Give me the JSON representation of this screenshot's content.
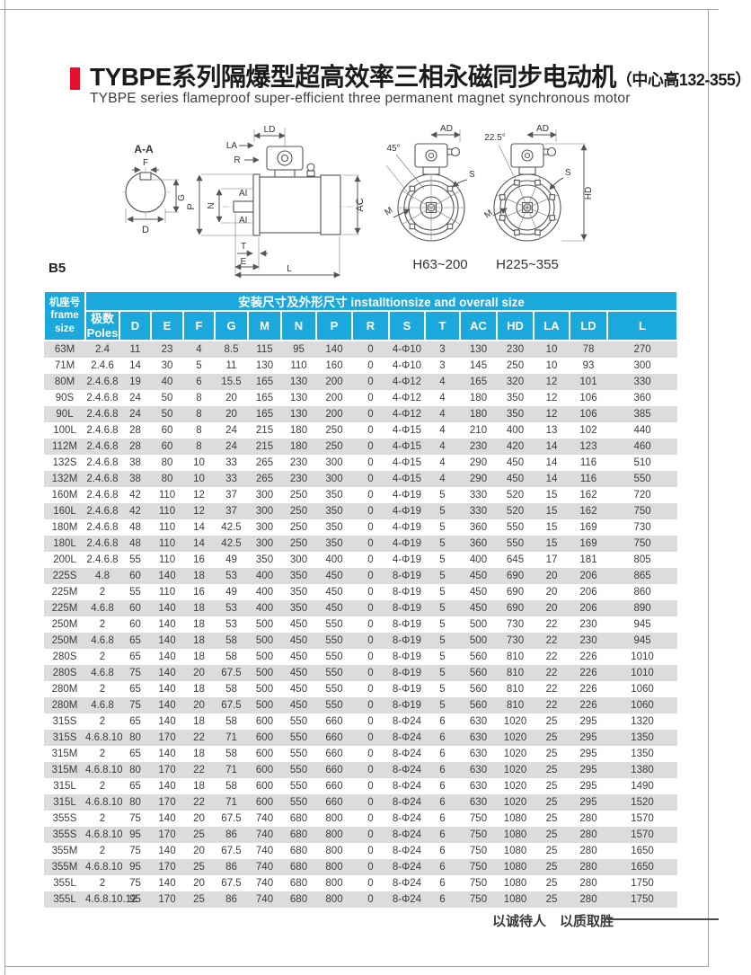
{
  "page": {
    "title_cn": "TYBPE系列隔爆型超高效率三相永磁同步电动机",
    "title_note": "（中心高132-355）",
    "subtitle_en": "TYBPE series flameproof super-efficient three permanent magnet synchronous motor",
    "mounting_label": "B5",
    "motto": "以诚待人　以质取胜"
  },
  "drawings": {
    "section_view": {
      "title": "A-A",
      "labels": {
        "f": "F",
        "g": "G",
        "d": "D"
      }
    },
    "side_view": {
      "labels": {
        "ld": "LD",
        "la": "LA",
        "r": "R",
        "p": "P",
        "n": "N",
        "ai_top": "AI",
        "ai_bottom": "AI",
        "ac": "AC",
        "t": "T",
        "e": "E",
        "l": "L"
      }
    },
    "front_view_small": {
      "caption": "H63~200",
      "angle": "45°",
      "labels": {
        "ad": "AD",
        "s": "S",
        "m": "M"
      }
    },
    "front_view_large": {
      "caption": "H225~355",
      "angle": "22.5°",
      "labels": {
        "ad": "AD",
        "s": "S",
        "m": "M",
        "hd": "HD"
      }
    }
  },
  "table": {
    "span_header": "安装尺寸及外形尺寸 installtionsize and overall size",
    "frame_header_cn": "机座号",
    "frame_header_en": "frame size",
    "poles_header_cn": "极数",
    "poles_header_en": "Poles",
    "dim_columns": [
      "D",
      "E",
      "F",
      "G",
      "M",
      "N",
      "P",
      "R",
      "S",
      "T",
      "AC",
      "HD",
      "LA",
      "LD",
      "L"
    ],
    "rows": [
      [
        "63M",
        "2.4",
        "11",
        "23",
        "4",
        "8.5",
        "115",
        "95",
        "140",
        "0",
        "4-Φ10",
        "3",
        "130",
        "230",
        "10",
        "78",
        "270"
      ],
      [
        "71M",
        "2.4.6",
        "14",
        "30",
        "5",
        "11",
        "130",
        "110",
        "160",
        "0",
        "4-Φ10",
        "3",
        "145",
        "250",
        "10",
        "93",
        "300"
      ],
      [
        "80M",
        "2.4.6.8",
        "19",
        "40",
        "6",
        "15.5",
        "165",
        "130",
        "200",
        "0",
        "4-Φ12",
        "4",
        "165",
        "320",
        "12",
        "101",
        "330"
      ],
      [
        "90S",
        "2.4.6.8",
        "24",
        "50",
        "8",
        "20",
        "165",
        "130",
        "200",
        "0",
        "4-Φ12",
        "4",
        "180",
        "350",
        "12",
        "106",
        "360"
      ],
      [
        "90L",
        "2.4.6.8",
        "24",
        "50",
        "8",
        "20",
        "165",
        "130",
        "200",
        "0",
        "4-Φ12",
        "4",
        "180",
        "350",
        "12",
        "106",
        "385"
      ],
      [
        "100L",
        "2.4.6.8",
        "28",
        "60",
        "8",
        "24",
        "215",
        "180",
        "250",
        "0",
        "4-Φ15",
        "4",
        "210",
        "400",
        "13",
        "102",
        "440"
      ],
      [
        "112M",
        "2.4.6.8",
        "28",
        "60",
        "8",
        "24",
        "215",
        "180",
        "250",
        "0",
        "4-Φ15",
        "4",
        "230",
        "420",
        "14",
        "123",
        "460"
      ],
      [
        "132S",
        "2.4.6.8",
        "38",
        "80",
        "10",
        "33",
        "265",
        "230",
        "300",
        "0",
        "4-Φ15",
        "4",
        "290",
        "450",
        "14",
        "116",
        "510"
      ],
      [
        "132M",
        "2.4.6.8",
        "38",
        "80",
        "10",
        "33",
        "265",
        "230",
        "300",
        "0",
        "4-Φ15",
        "4",
        "290",
        "450",
        "14",
        "116",
        "550"
      ],
      [
        "160M",
        "2.4.6.8",
        "42",
        "110",
        "12",
        "37",
        "300",
        "250",
        "350",
        "0",
        "4-Φ19",
        "5",
        "330",
        "520",
        "15",
        "162",
        "720"
      ],
      [
        "160L",
        "2.4.6.8",
        "42",
        "110",
        "12",
        "37",
        "300",
        "250",
        "350",
        "0",
        "4-Φ19",
        "5",
        "330",
        "520",
        "15",
        "162",
        "750"
      ],
      [
        "180M",
        "2.4.6.8",
        "48",
        "110",
        "14",
        "42.5",
        "300",
        "250",
        "350",
        "0",
        "4-Φ19",
        "5",
        "360",
        "550",
        "15",
        "169",
        "730"
      ],
      [
        "180L",
        "2.4.6.8",
        "48",
        "110",
        "14",
        "42.5",
        "300",
        "250",
        "350",
        "0",
        "4-Φ19",
        "5",
        "360",
        "550",
        "15",
        "169",
        "750"
      ],
      [
        "200L",
        "2.4.6.8",
        "55",
        "110",
        "16",
        "49",
        "350",
        "300",
        "400",
        "0",
        "4-Φ19",
        "5",
        "400",
        "645",
        "17",
        "181",
        "805"
      ],
      [
        "225S",
        "4.8",
        "60",
        "140",
        "18",
        "53",
        "400",
        "350",
        "450",
        "0",
        "8-Φ19",
        "5",
        "450",
        "690",
        "20",
        "206",
        "865"
      ],
      [
        "225M",
        "2",
        "55",
        "110",
        "16",
        "49",
        "400",
        "350",
        "450",
        "0",
        "8-Φ19",
        "5",
        "450",
        "690",
        "20",
        "206",
        "860"
      ],
      [
        "225M",
        "4.6.8",
        "60",
        "140",
        "18",
        "53",
        "400",
        "350",
        "450",
        "0",
        "8-Φ19",
        "5",
        "450",
        "690",
        "20",
        "206",
        "890"
      ],
      [
        "250M",
        "2",
        "60",
        "140",
        "18",
        "53",
        "500",
        "450",
        "550",
        "0",
        "8-Φ19",
        "5",
        "500",
        "730",
        "22",
        "230",
        "945"
      ],
      [
        "250M",
        "4.6.8",
        "65",
        "140",
        "18",
        "58",
        "500",
        "450",
        "550",
        "0",
        "8-Φ19",
        "5",
        "500",
        "730",
        "22",
        "230",
        "945"
      ],
      [
        "280S",
        "2",
        "65",
        "140",
        "18",
        "58",
        "500",
        "450",
        "550",
        "0",
        "8-Φ19",
        "5",
        "560",
        "810",
        "22",
        "226",
        "1010"
      ],
      [
        "280S",
        "4.6.8",
        "75",
        "140",
        "20",
        "67.5",
        "500",
        "450",
        "550",
        "0",
        "8-Φ19",
        "5",
        "560",
        "810",
        "22",
        "226",
        "1010"
      ],
      [
        "280M",
        "2",
        "65",
        "140",
        "18",
        "58",
        "500",
        "450",
        "550",
        "0",
        "8-Φ19",
        "5",
        "560",
        "810",
        "22",
        "226",
        "1060"
      ],
      [
        "280M",
        "4.6.8",
        "75",
        "140",
        "20",
        "67.5",
        "500",
        "450",
        "550",
        "0",
        "8-Φ19",
        "5",
        "560",
        "810",
        "22",
        "226",
        "1060"
      ],
      [
        "315S",
        "2",
        "65",
        "140",
        "18",
        "58",
        "600",
        "550",
        "660",
        "0",
        "8-Φ24",
        "6",
        "630",
        "1020",
        "25",
        "295",
        "1320"
      ],
      [
        "315S",
        "4.6.8.10",
        "80",
        "170",
        "22",
        "71",
        "600",
        "550",
        "660",
        "0",
        "8-Φ24",
        "6",
        "630",
        "1020",
        "25",
        "295",
        "1350"
      ],
      [
        "315M",
        "2",
        "65",
        "140",
        "18",
        "58",
        "600",
        "550",
        "660",
        "0",
        "8-Φ24",
        "6",
        "630",
        "1020",
        "25",
        "295",
        "1350"
      ],
      [
        "315M",
        "4.6.8.10",
        "80",
        "170",
        "22",
        "71",
        "600",
        "550",
        "660",
        "0",
        "8-Φ24",
        "6",
        "630",
        "1020",
        "25",
        "295",
        "1380"
      ],
      [
        "315L",
        "2",
        "65",
        "140",
        "18",
        "58",
        "600",
        "550",
        "660",
        "0",
        "8-Φ24",
        "6",
        "630",
        "1020",
        "25",
        "295",
        "1490"
      ],
      [
        "315L",
        "4.6.8.10",
        "80",
        "170",
        "22",
        "71",
        "600",
        "550",
        "660",
        "0",
        "8-Φ24",
        "6",
        "630",
        "1020",
        "25",
        "295",
        "1520"
      ],
      [
        "355S",
        "2",
        "75",
        "140",
        "20",
        "67.5",
        "740",
        "680",
        "800",
        "0",
        "8-Φ24",
        "6",
        "750",
        "1080",
        "25",
        "280",
        "1570"
      ],
      [
        "355S",
        "4.6.8.10",
        "95",
        "170",
        "25",
        "86",
        "740",
        "680",
        "800",
        "0",
        "8-Φ24",
        "6",
        "750",
        "1080",
        "25",
        "280",
        "1570"
      ],
      [
        "355M",
        "2",
        "75",
        "140",
        "20",
        "67.5",
        "740",
        "680",
        "800",
        "0",
        "8-Φ24",
        "6",
        "750",
        "1080",
        "25",
        "280",
        "1650"
      ],
      [
        "355M",
        "4.6.8.10",
        "95",
        "170",
        "25",
        "86",
        "740",
        "680",
        "800",
        "0",
        "8-Φ24",
        "6",
        "750",
        "1080",
        "25",
        "280",
        "1650"
      ],
      [
        "355L",
        "2",
        "75",
        "140",
        "20",
        "67.5",
        "740",
        "680",
        "800",
        "0",
        "8-Φ24",
        "6",
        "750",
        "1080",
        "25",
        "280",
        "1750"
      ],
      [
        "355L",
        "4.6.8.10.12",
        "95",
        "170",
        "25",
        "86",
        "740",
        "680",
        "800",
        "0",
        "8-Φ24",
        "6",
        "750",
        "1080",
        "25",
        "280",
        "1750"
      ]
    ]
  },
  "colors": {
    "header_blue": "#1ba8dd",
    "row_gray": "#dcdcdc",
    "accent_red": "#e8112d"
  }
}
